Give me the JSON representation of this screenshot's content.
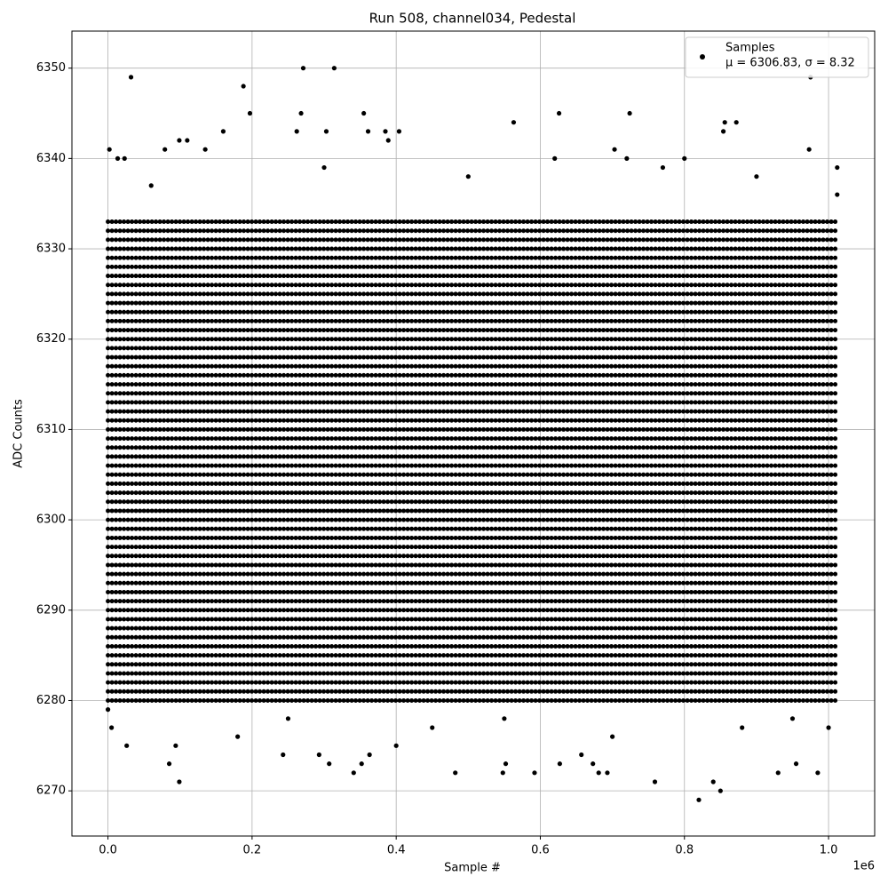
{
  "chart_data": {
    "type": "scatter",
    "title": "Run 508, channel034, Pedestal",
    "xlabel": "Sample #",
    "ylabel": "ADC Counts",
    "x_offset_label": "1e6",
    "xlim": [
      -50000,
      1064000
    ],
    "ylim": [
      6265,
      6354.1
    ],
    "xticks": [
      {
        "value": 0,
        "label": "0.0"
      },
      {
        "value": 200000,
        "label": "0.2"
      },
      {
        "value": 400000,
        "label": "0.4"
      },
      {
        "value": 600000,
        "label": "0.6"
      },
      {
        "value": 800000,
        "label": "0.8"
      },
      {
        "value": 1000000,
        "label": "1.0"
      }
    ],
    "yticks": [
      6270,
      6280,
      6290,
      6300,
      6310,
      6320,
      6330,
      6340,
      6350
    ],
    "grid": true,
    "legend": "upper right",
    "legend_subtitle": "μ = 6306.83, σ = 8.32",
    "dense_x_range": [
      0,
      1010000
    ],
    "dense_levels": [
      6280,
      6281,
      6282,
      6283,
      6284,
      6285,
      6286,
      6287,
      6288,
      6289,
      6290,
      6291,
      6292,
      6293,
      6294,
      6295,
      6296,
      6297,
      6298,
      6299,
      6300,
      6301,
      6302,
      6303,
      6304,
      6305,
      6306,
      6307,
      6308,
      6309,
      6310,
      6311,
      6312,
      6313,
      6314,
      6315,
      6316,
      6317,
      6318,
      6319,
      6320,
      6321,
      6322,
      6323,
      6324,
      6325,
      6326,
      6327,
      6328,
      6329,
      6330,
      6331,
      6332,
      6333
    ],
    "series": [
      {
        "name": "Samples",
        "color": "#000000",
        "x": [
          32000,
          271000,
          314000,
          188000,
          975000,
          197000,
          268000,
          355000,
          626000,
          724000,
          563000,
          856000,
          872000,
          160000,
          262000,
          303000,
          361000,
          385000,
          404000,
          854000,
          99000,
          110000,
          389000,
          2000,
          79000,
          135000,
          703000,
          973000,
          13500,
          23000,
          300000,
          620000,
          720000,
          770000,
          800000,
          1012000,
          60000,
          500000,
          900000,
          1012000,
          85000,
          99000,
          341000,
          352000,
          363000,
          307000,
          293000,
          243000,
          482000,
          548000,
          552000,
          592000,
          681000,
          693000,
          759000,
          820000,
          840000,
          850000,
          930000,
          955000,
          985000,
          673000,
          657000,
          627000,
          94000,
          26000,
          400000,
          5000,
          180000,
          450000,
          700000,
          880000,
          1000000,
          0,
          250000,
          550000,
          950000
        ],
        "y": [
          6349,
          6350,
          6350,
          6348,
          6349,
          6345,
          6345,
          6345,
          6345,
          6345,
          6344,
          6344,
          6344,
          6343,
          6343,
          6343,
          6343,
          6343,
          6343,
          6343,
          6342,
          6342,
          6342,
          6341,
          6341,
          6341,
          6341,
          6341,
          6340,
          6340,
          6339,
          6340,
          6340,
          6339,
          6340,
          6339,
          6337,
          6338,
          6338,
          6336,
          6273,
          6271,
          6272,
          6273,
          6274,
          6273,
          6274,
          6274,
          6272,
          6272,
          6273,
          6272,
          6272,
          6272,
          6271,
          6269,
          6271,
          6270,
          6272,
          6273,
          6272,
          6273,
          6274,
          6273,
          6275,
          6275,
          6275,
          6277,
          6276,
          6277,
          6276,
          6277,
          6277,
          6279,
          6278,
          6278,
          6278
        ]
      }
    ]
  }
}
